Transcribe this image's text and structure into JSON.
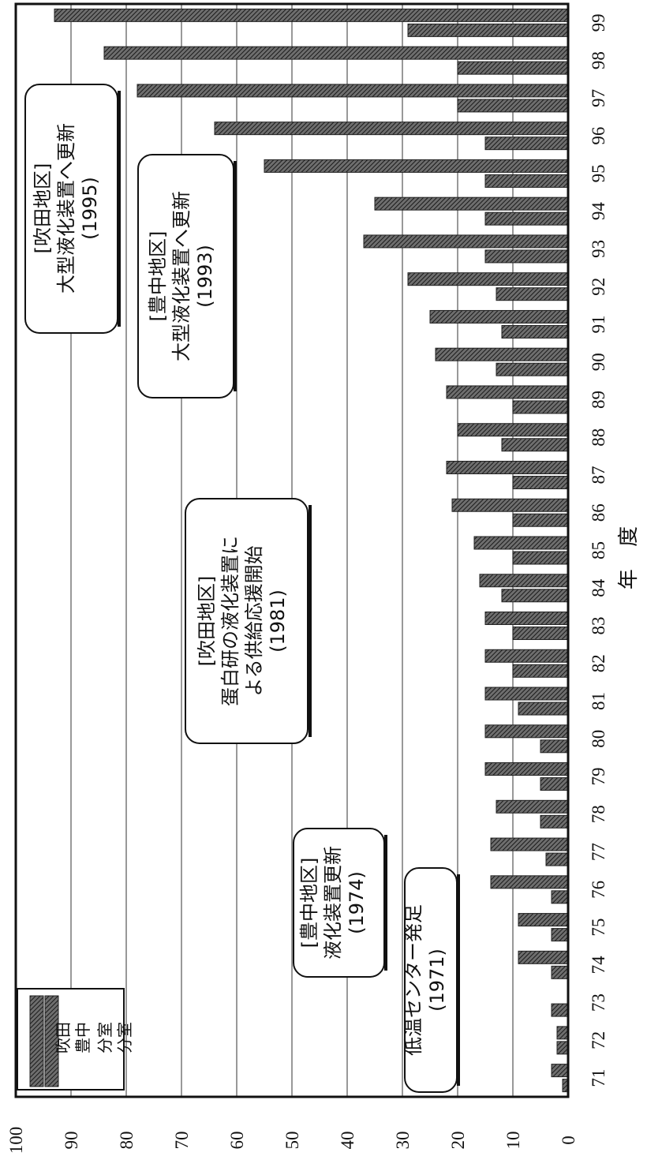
{
  "chart_data": {
    "type": "bar",
    "orientation": "vertical (image rotated 90° clockwise)",
    "xlabel": "年 度",
    "ylabel": "",
    "ylim": [
      0,
      100
    ],
    "yticks": [
      0,
      10,
      20,
      30,
      40,
      50,
      60,
      70,
      80,
      90,
      100
    ],
    "grid": true,
    "legend_position": "top-left",
    "categories": [
      "71",
      "72",
      "73",
      "74",
      "75",
      "76",
      "77",
      "78",
      "79",
      "80",
      "81",
      "82",
      "83",
      "84",
      "85",
      "86",
      "87",
      "88",
      "89",
      "90",
      "91",
      "92",
      "93",
      "94",
      "95",
      "96",
      "97",
      "98",
      "99"
    ],
    "series": [
      {
        "name": "吹田分室",
        "values": [
          3,
          2,
          0,
          9,
          9,
          14,
          14,
          13,
          15,
          15,
          15,
          15,
          15,
          16,
          17,
          21,
          22,
          20,
          22,
          24,
          25,
          29,
          37,
          35,
          55,
          64,
          78,
          84,
          93
        ]
      },
      {
        "name": "豊中分室",
        "values": [
          1,
          2,
          3,
          3,
          3,
          3,
          4,
          5,
          5,
          5,
          9,
          10,
          10,
          12,
          10,
          10,
          10,
          12,
          10,
          13,
          12,
          13,
          15,
          15,
          15,
          15,
          20,
          20,
          29
        ]
      }
    ],
    "annotations": [
      {
        "lines": [
          "[吹田地区]",
          "大型液化装置へ更新",
          "(1995)"
        ]
      },
      {
        "lines": [
          "[豊中地区]",
          "大型液化装置へ更新",
          "(1993)"
        ]
      },
      {
        "lines": [
          "[吹田地区]",
          "蛋白研の液化装置に",
          "よる供給応援開始",
          "(1981)"
        ]
      },
      {
        "lines": [
          "[豊中地区]",
          "液化装置更新",
          "(1974)"
        ]
      },
      {
        "lines": [
          "低温センター発足",
          "(1971)"
        ]
      }
    ]
  },
  "legend": {
    "items": [
      {
        "label_top": "吹田",
        "label_bottom": "分室"
      },
      {
        "label_top": "豊中",
        "label_bottom": "分室"
      }
    ]
  },
  "colors": {
    "bar_fill": "url(#hatch)",
    "stroke": "#222222",
    "grid": "#555555"
  }
}
